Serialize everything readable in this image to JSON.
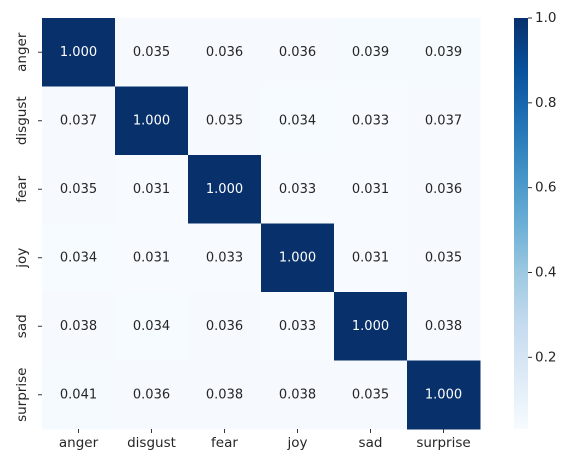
{
  "chart_data": {
    "type": "heatmap",
    "title": "",
    "xlabel": "",
    "ylabel": "",
    "x_categories": [
      "anger",
      "disgust",
      "fear",
      "joy",
      "sad",
      "surprise"
    ],
    "y_categories": [
      "anger",
      "disgust",
      "fear",
      "joy",
      "sad",
      "surprise"
    ],
    "values": [
      [
        1.0,
        0.035,
        0.036,
        0.036,
        0.039,
        0.039
      ],
      [
        0.037,
        1.0,
        0.035,
        0.034,
        0.033,
        0.037
      ],
      [
        0.035,
        0.031,
        1.0,
        0.033,
        0.031,
        0.036
      ],
      [
        0.034,
        0.031,
        0.033,
        1.0,
        0.031,
        0.035
      ],
      [
        0.038,
        0.034,
        0.036,
        0.033,
        1.0,
        0.038
      ],
      [
        0.041,
        0.036,
        0.038,
        0.038,
        0.035,
        1.0
      ]
    ],
    "value_format": "0.000",
    "colormap": "Blues",
    "colorbar": {
      "range": [
        0.031,
        1.0
      ],
      "ticks": [
        0.2,
        0.4,
        0.6,
        0.8,
        1.0
      ],
      "tick_labels": [
        "0.2",
        "0.4",
        "0.6",
        "0.8",
        "1.0"
      ]
    },
    "colors": {
      "low": "#f7fbff",
      "high": "#08306b"
    }
  }
}
